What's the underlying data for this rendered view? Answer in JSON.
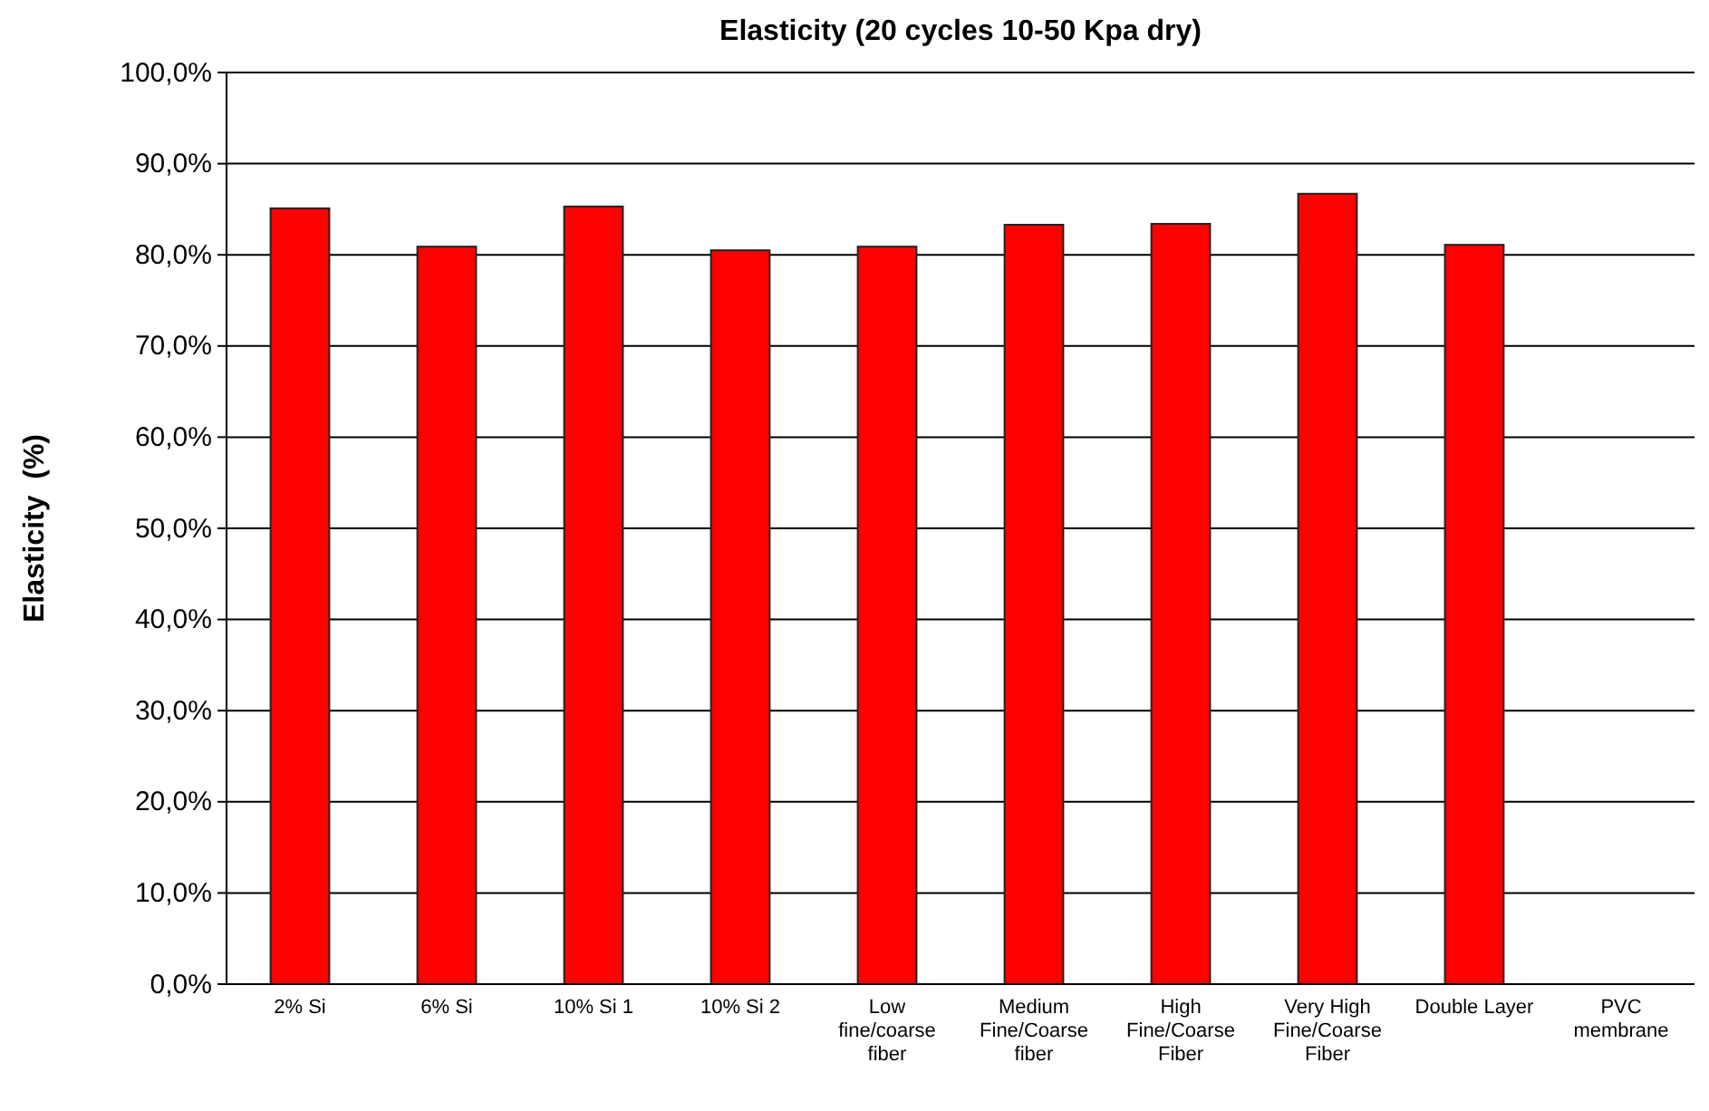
{
  "chart_data": {
    "type": "bar",
    "title": "Elasticity (20 cycles 10-50 Kpa dry)",
    "ylabel": "Elasticity  (%)",
    "categories": [
      "2% Si",
      "6% Si",
      "10% Si 1",
      "10% Si 2",
      "Low fine/coarse fiber",
      "Medium Fine/Coarse fiber",
      "High Fine/Coarse Fiber",
      "Very High Fine/Coarse Fiber",
      "Double Layer",
      "PVC membrane"
    ],
    "values": [
      85.1,
      80.9,
      85.3,
      80.5,
      80.9,
      83.3,
      83.4,
      86.7,
      81.1,
      null
    ],
    "color": "#ff0000",
    "ylim": [
      0,
      100
    ],
    "yticks": [
      {
        "value": 0,
        "label": "0,0%"
      },
      {
        "value": 10,
        "label": "10,0%"
      },
      {
        "value": 20,
        "label": "20,0%"
      },
      {
        "value": 30,
        "label": "30,0%"
      },
      {
        "value": 40,
        "label": "40,0%"
      },
      {
        "value": 50,
        "label": "50,0%"
      },
      {
        "value": 60,
        "label": "60,0%"
      },
      {
        "value": 70,
        "label": "70,0%"
      },
      {
        "value": 80,
        "label": "80,0%"
      },
      {
        "value": 90,
        "label": "90,0%"
      },
      {
        "value": 100,
        "label": "100,0%"
      }
    ],
    "grid": "y"
  }
}
